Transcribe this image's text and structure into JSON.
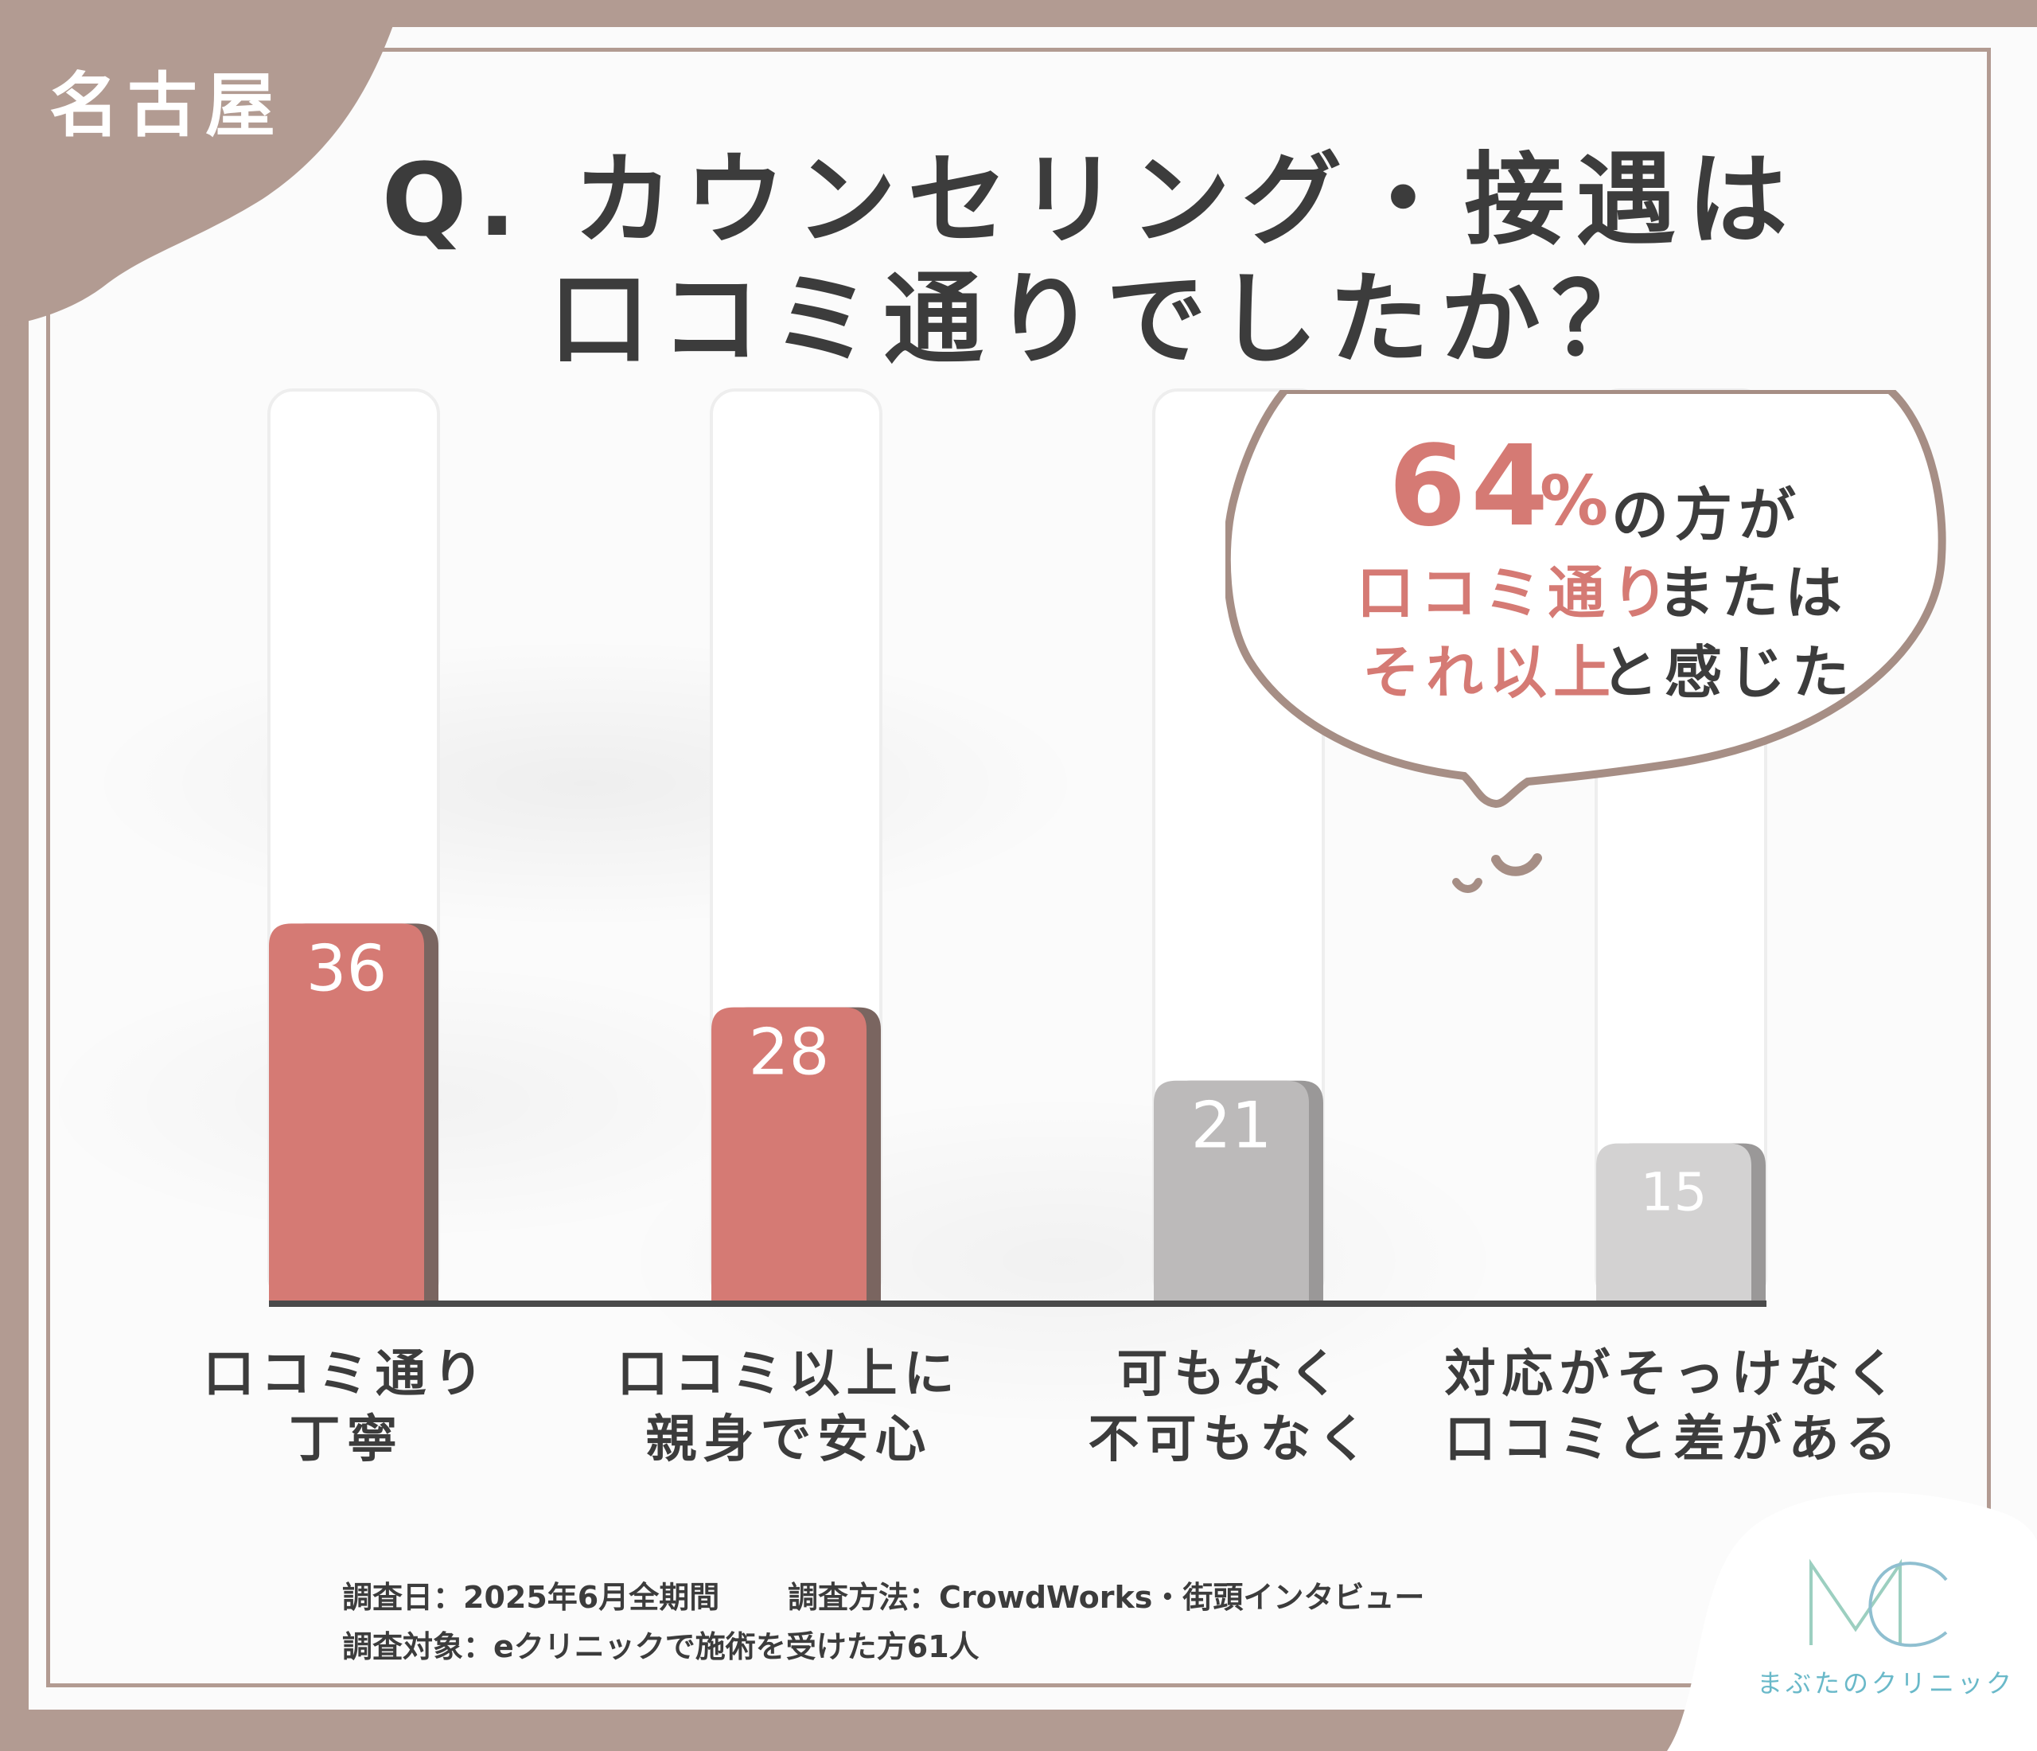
{
  "city_tag": "名古屋",
  "title": {
    "line1": "Q. カウンセリング・接遇は",
    "line2": "口コミ通りでしたか？"
  },
  "bubble": {
    "percent": "64",
    "percent_sign": "%",
    "line1_rest": "の方が",
    "line2_highlight": "口コミ通り",
    "line2_rest": "または",
    "line3_highlight": "それ以上",
    "line3_rest": "と感じた"
  },
  "survey": {
    "date": "調査日：2025年6月全期間",
    "method": "調査方法：CrowdWorks・街頭インタビュー",
    "target": "調査対象：eクリニックで施術を受けた方61人"
  },
  "logo": {
    "mark": "MC",
    "name": "まぶたのクリニック"
  },
  "colors": {
    "brand_mauve": "#b29b92",
    "accent_red": "#d57a74",
    "bar_gray_dark": "#bcbaba",
    "bar_gray_light": "#d3d2d2",
    "text_dark": "#3c3c3c",
    "logo_teal": "#6ab9c9"
  },
  "chart_data": {
    "type": "bar",
    "title": "Q. カウンセリング・接遇は 口コミ通りでしたか？",
    "categories": [
      "口コミ通り 丁寧",
      "口コミ以上に 親身で安心",
      "可もなく 不可もなく",
      "対応がそっけなく 口コミと差がある"
    ],
    "category_lines": [
      [
        "口コミ通り",
        "丁寧"
      ],
      [
        "口コミ以上に",
        "親身で安心"
      ],
      [
        "可もなく",
        "不可もなく"
      ],
      [
        "対応がそっけなく",
        "口コミと差がある"
      ]
    ],
    "values": [
      36,
      28,
      21,
      15
    ],
    "labels": [
      "36",
      "28",
      "21",
      "15"
    ],
    "bar_colors": [
      "#d57a74",
      "#d57a74",
      "#bcbaba",
      "#d3d2d2"
    ],
    "ylim": [
      0,
      100
    ],
    "xlabel": "",
    "ylabel": "",
    "grid": false
  }
}
